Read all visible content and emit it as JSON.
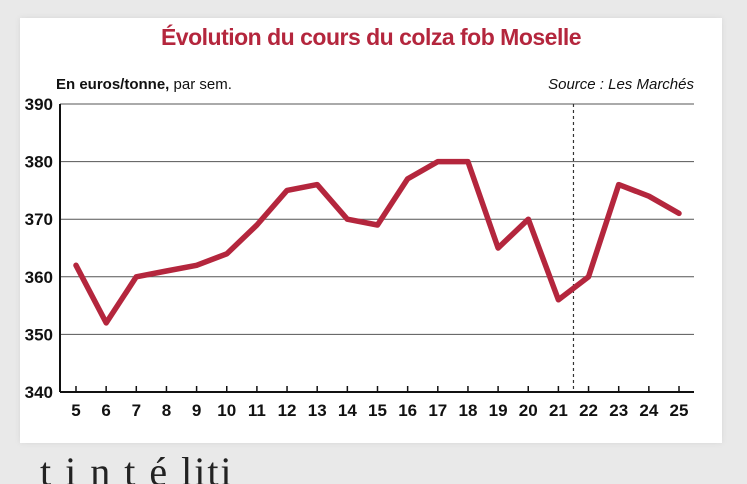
{
  "chart_data": {
    "type": "line",
    "title": "Évolution du cours du colza fob Moselle",
    "ylabel_bold": "En euros/tonne,",
    "ylabel_rest": " par sem.",
    "source": "Source : Les Marchés",
    "x": [
      5,
      6,
      7,
      8,
      9,
      10,
      11,
      12,
      13,
      14,
      15,
      16,
      17,
      18,
      19,
      20,
      21,
      22,
      23,
      24,
      25
    ],
    "series": [
      {
        "values": [
          362,
          352,
          360,
          361,
          362,
          364,
          369,
          375,
          376,
          370,
          369,
          377,
          380,
          380,
          365,
          370,
          356,
          360,
          376,
          374,
          371
        ]
      }
    ],
    "ylim": [
      340,
      390
    ],
    "yticks": [
      340,
      350,
      360,
      370,
      380,
      390
    ],
    "grid": true,
    "divider_after_x": 21,
    "colors": {
      "title": "#b4263d",
      "line": "#b4263d",
      "grid": "#555555"
    }
  },
  "cropped_text": "t i n  t    é     liti         "
}
